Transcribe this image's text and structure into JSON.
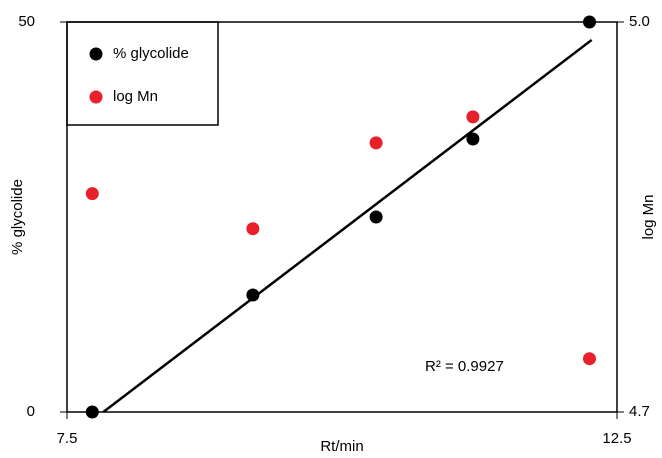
{
  "chart_data": {
    "type": "scatter",
    "x_label": "Rt/min",
    "y_label": "% glycolide",
    "y2_label": "log Mn",
    "xlim": [
      7.5,
      12.5
    ],
    "xticks": [
      7.5,
      12.5
    ],
    "ylim": [
      0,
      50
    ],
    "yticks": [
      0,
      50
    ],
    "y2lim": [
      4.7,
      5.0
    ],
    "y2ticks": [
      4.7,
      {
        "value": 5.0,
        "label": "5.0"
      }
    ],
    "legend": "upper left",
    "series": [
      {
        "name": "% glycolide",
        "color": "#000000",
        "x": [
          7.73,
          9.19,
          10.31,
          11.19,
          12.25
        ],
        "values": [
          0,
          15,
          25,
          35,
          50
        ]
      },
      {
        "name": "log Mn",
        "color": "#e8202a",
        "axis": "y2",
        "x": [
          7.73,
          9.19,
          10.31,
          11.19,
          12.25
        ],
        "values": [
          4.868,
          4.841,
          4.907,
          4.927,
          4.741
        ]
      }
    ],
    "trendline": {
      "x": [
        7.83,
        12.27
      ],
      "values": [
        0,
        47.7
      ],
      "color": "#000000"
    },
    "annotation": "R² = 0.9927"
  }
}
